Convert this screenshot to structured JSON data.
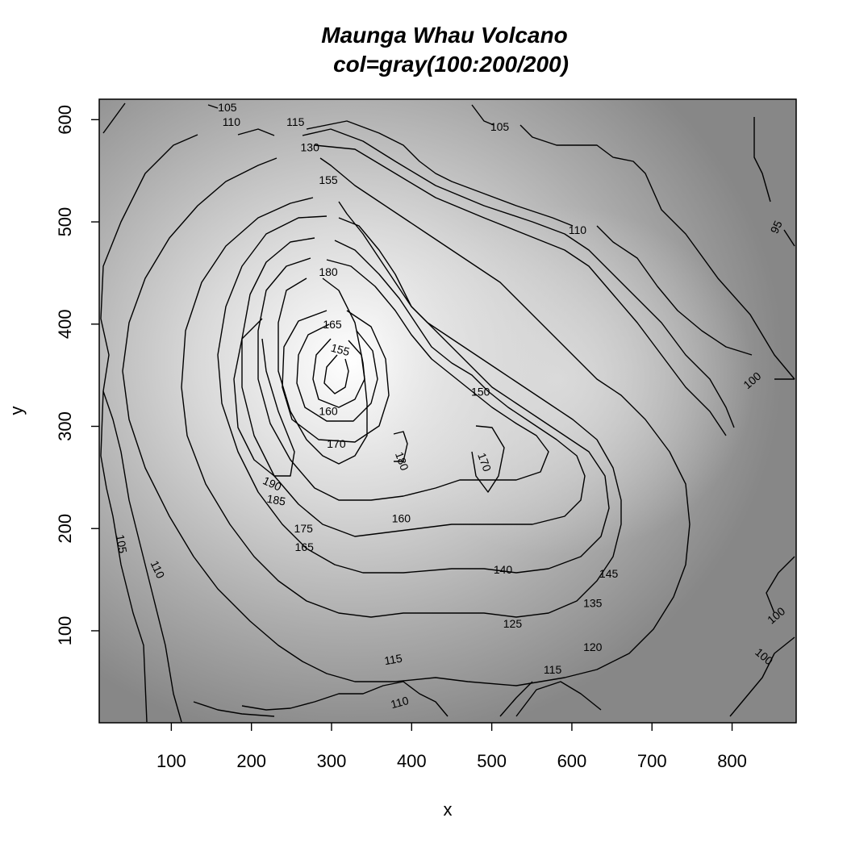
{
  "chart_data": {
    "type": "contour",
    "title": "Maunga Whau Volcano",
    "subtitle": "col=gray(100:200/200)",
    "xlabel": "x",
    "ylabel": "y",
    "xlim": [
      10,
      880
    ],
    "ylim": [
      10,
      620
    ],
    "xticks": [
      100,
      200,
      300,
      400,
      500,
      600,
      700,
      800
    ],
    "yticks": [
      100,
      200,
      300,
      400,
      500,
      600
    ],
    "fill": "gray(100:200/200)",
    "fill_range_colors": [
      "#808080",
      "#ffffff"
    ],
    "contours": [
      {
        "level": 95,
        "label": "95",
        "x": 855,
        "y": 495,
        "angle": 65
      },
      {
        "level": 100,
        "label": "100",
        "x": 825,
        "y": 345,
        "angle": 40
      },
      {
        "level": 100,
        "label": "100",
        "x": 855,
        "y": 115,
        "angle": 40
      },
      {
        "level": 100,
        "label": "100",
        "x": 840,
        "y": 75,
        "angle": -40
      },
      {
        "level": 105,
        "label": "105",
        "x": 170,
        "y": 612,
        "angle": 0
      },
      {
        "level": 105,
        "label": "105",
        "x": 510,
        "y": 593,
        "angle": 0
      },
      {
        "level": 105,
        "label": "105",
        "x": 38,
        "y": 185,
        "angle": -80
      },
      {
        "level": 110,
        "label": "110",
        "x": 175,
        "y": 598,
        "angle": 0
      },
      {
        "level": 110,
        "label": "110",
        "x": 607,
        "y": 492,
        "angle": 0
      },
      {
        "level": 110,
        "label": "110",
        "x": 83,
        "y": 160,
        "angle": -65
      },
      {
        "level": 110,
        "label": "110",
        "x": 385,
        "y": 30,
        "angle": 15
      },
      {
        "level": 115,
        "label": "115",
        "x": 255,
        "y": 598,
        "angle": 0
      },
      {
        "level": 115,
        "label": "115",
        "x": 377,
        "y": 72,
        "angle": 10
      },
      {
        "level": 115,
        "label": "115",
        "x": 576,
        "y": 62,
        "angle": 0
      },
      {
        "level": 120,
        "label": "120",
        "x": 626,
        "y": 84,
        "angle": 0
      },
      {
        "level": 125,
        "label": "125",
        "x": 526,
        "y": 107,
        "angle": 0
      },
      {
        "level": 130,
        "label": "130",
        "x": 273,
        "y": 573,
        "angle": 0
      },
      {
        "level": 135,
        "label": "135",
        "x": 626,
        "y": 127,
        "angle": 0
      },
      {
        "level": 140,
        "label": "140",
        "x": 514,
        "y": 160,
        "angle": 0
      },
      {
        "level": 145,
        "label": "145",
        "x": 646,
        "y": 156,
        "angle": 0
      },
      {
        "level": 150,
        "label": "150",
        "x": 486,
        "y": 334,
        "angle": 0
      },
      {
        "level": 155,
        "label": "155",
        "x": 296,
        "y": 541,
        "angle": 0
      },
      {
        "level": 155,
        "label": "155",
        "x": 311,
        "y": 375,
        "angle": -15
      },
      {
        "level": 160,
        "label": "160",
        "x": 387,
        "y": 210,
        "angle": 0
      },
      {
        "level": 160,
        "label": "160",
        "x": 296,
        "y": 315,
        "angle": 0
      },
      {
        "level": 165,
        "label": "165",
        "x": 301,
        "y": 400,
        "angle": 0
      },
      {
        "level": 165,
        "label": "165",
        "x": 266,
        "y": 182,
        "angle": 0
      },
      {
        "level": 170,
        "label": "170",
        "x": 306,
        "y": 283,
        "angle": 0
      },
      {
        "level": 170,
        "label": "170",
        "x": 491,
        "y": 265,
        "angle": -70
      },
      {
        "level": 175,
        "label": "175",
        "x": 265,
        "y": 200,
        "angle": 0
      },
      {
        "level": 180,
        "label": "180",
        "x": 296,
        "y": 451,
        "angle": 0
      },
      {
        "level": 180,
        "label": "180",
        "x": 388,
        "y": 266,
        "angle": -70
      },
      {
        "level": 185,
        "label": "185",
        "x": 231,
        "y": 228,
        "angle": -10
      },
      {
        "level": 190,
        "label": "190",
        "x": 226,
        "y": 244,
        "angle": -25
      }
    ]
  }
}
